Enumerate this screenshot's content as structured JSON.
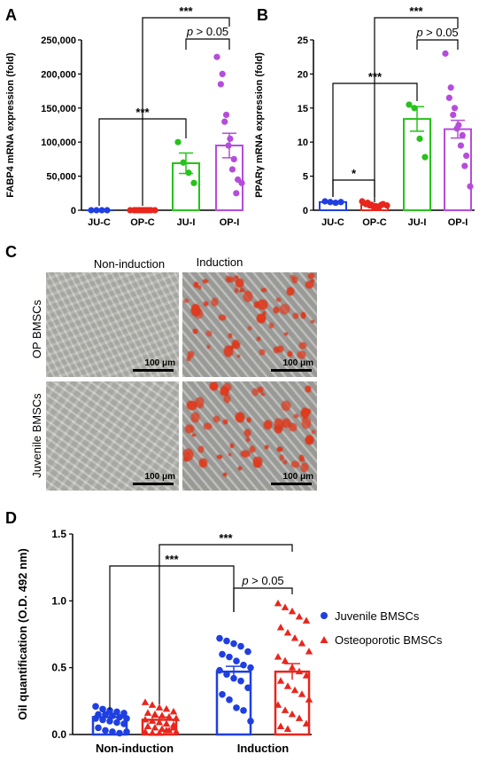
{
  "panel_labels": {
    "a": "A",
    "b": "B",
    "c": "C",
    "d": "D"
  },
  "chart_data": [
    {
      "type": "bar",
      "panel": "A",
      "categories": [
        "JU-C",
        "OP-C",
        "JU-I",
        "OP-I"
      ],
      "ylabel": "FABP4 mRNA expression (fold)",
      "ylim": [
        0,
        250000
      ],
      "yticks": [
        "0",
        "50,000",
        "100,000",
        "150,000",
        "200,000",
        "250,000"
      ],
      "ytick_values": [
        0,
        50000,
        100000,
        150000,
        200000,
        250000
      ],
      "series": [
        {
          "category": "JU-C",
          "color": "#1f3fe0",
          "mean": 1,
          "error": 0,
          "points": [
            1,
            1,
            1,
            1
          ]
        },
        {
          "category": "OP-C",
          "color": "#e8261d",
          "mean": 1,
          "error": 0,
          "points": [
            1,
            1,
            1,
            1,
            1,
            1,
            1,
            1,
            1,
            1,
            1,
            1
          ]
        },
        {
          "category": "JU-I",
          "color": "#27c21b",
          "mean": 69000,
          "error": 15000,
          "points": [
            100000,
            70000,
            55000,
            40000
          ]
        },
        {
          "category": "OP-I",
          "color": "#b54cdc",
          "mean": 95000,
          "error": 18000,
          "points": [
            225000,
            200000,
            185000,
            140000,
            130000,
            105000,
            95000,
            75000,
            60000,
            45000,
            25000,
            40000
          ]
        }
      ],
      "annotations": [
        {
          "label": "***",
          "from": "JU-C",
          "to": "JU-I"
        },
        {
          "label": "***",
          "from": "OP-C",
          "to": "OP-I"
        },
        {
          "label": "p > 0.05",
          "from": "JU-I",
          "to": "OP-I"
        }
      ]
    },
    {
      "type": "bar",
      "panel": "B",
      "categories": [
        "JU-C",
        "OP-C",
        "JU-I",
        "OP-I"
      ],
      "ylabel": "PPARγ mRNA expression (fold)",
      "ylim": [
        0,
        25
      ],
      "yticks": [
        "0",
        "5",
        "10",
        "15",
        "20",
        "25"
      ],
      "ytick_values": [
        0,
        5,
        10,
        15,
        20,
        25
      ],
      "series": [
        {
          "category": "JU-C",
          "color": "#1f3fe0",
          "mean": 1.2,
          "error": 0.1,
          "points": [
            1.3,
            1.2,
            1.1,
            1.2
          ]
        },
        {
          "category": "OP-C",
          "color": "#e8261d",
          "mean": 0.8,
          "error": 0.1,
          "points": [
            1.3,
            1.1,
            0.9,
            0.8,
            0.7,
            0.6,
            0.5,
            0.5,
            0.4,
            0.9,
            0.8,
            0.7
          ]
        },
        {
          "category": "JU-I",
          "color": "#27c21b",
          "mean": 13.4,
          "error": 1.8,
          "points": [
            15.5,
            15.0,
            10.5,
            7.8
          ]
        },
        {
          "category": "OP-I",
          "color": "#b54cdc",
          "mean": 11.9,
          "error": 1.3,
          "points": [
            23.0,
            18.0,
            16.5,
            15.0,
            14.0,
            12.5,
            12.0,
            11.0,
            9.5,
            8.0,
            6.5,
            3.5
          ]
        }
      ],
      "annotations": [
        {
          "label": "*",
          "from": "JU-C",
          "to": "OP-C"
        },
        {
          "label": "***",
          "from": "JU-C",
          "to": "JU-I"
        },
        {
          "label": "***",
          "from": "OP-C",
          "to": "OP-I"
        },
        {
          "label": "p > 0.05",
          "from": "JU-I",
          "to": "OP-I"
        }
      ]
    },
    {
      "type": "bar",
      "panel": "D",
      "categories": [
        "Non-induction",
        "Induction"
      ],
      "ylabel": "Oil quantification (O.D. 492 nm)",
      "ylim": [
        0,
        1.5
      ],
      "yticks": [
        "0.0",
        "0.5",
        "1.0",
        "1.5"
      ],
      "ytick_values": [
        0,
        0.5,
        1.0,
        1.5
      ],
      "legend_position": "right",
      "series": [
        {
          "name": "Juvenile BMSCs",
          "marker": "circle",
          "color": "#1f3fe0",
          "means": [
            0.13,
            0.47
          ],
          "errors": [
            0.02,
            0.04
          ],
          "points": [
            [
              0.21,
              0.19,
              0.18,
              0.17,
              0.16,
              0.15,
              0.15,
              0.14,
              0.13,
              0.12,
              0.12,
              0.11,
              0.1,
              0.09,
              0.08,
              0.05,
              0.03,
              0.02,
              0.01,
              0.02
            ],
            [
              0.72,
              0.7,
              0.68,
              0.66,
              0.62,
              0.6,
              0.58,
              0.55,
              0.52,
              0.5,
              0.48,
              0.45,
              0.42,
              0.4,
              0.35,
              0.3,
              0.26,
              0.2,
              0.18,
              0.1
            ]
          ]
        },
        {
          "name": "Osteoporotic BMSCs",
          "marker": "triangle",
          "color": "#e8261d",
          "means": [
            0.11,
            0.47
          ],
          "errors": [
            0.02,
            0.06
          ],
          "points": [
            [
              0.24,
              0.22,
              0.2,
              0.19,
              0.17,
              0.16,
              0.15,
              0.14,
              0.13,
              0.12,
              0.11,
              0.1,
              0.09,
              0.08,
              0.07,
              0.06,
              0.05,
              0.04,
              0.03,
              0.02,
              0.02,
              0.01,
              0.01,
              0.03,
              0.05
            ],
            [
              0.98,
              0.95,
              0.92,
              0.88,
              0.85,
              0.8,
              0.76,
              0.72,
              0.68,
              0.62,
              0.58,
              0.55,
              0.5,
              0.47,
              0.44,
              0.4,
              0.36,
              0.33,
              0.3,
              0.26,
              0.22,
              0.18,
              0.15,
              0.12,
              0.08,
              0.06,
              0.04
            ]
          ]
        }
      ],
      "annotations": [
        {
          "label": "***",
          "from": "Non-induction",
          "to": "Induction",
          "series_pair": "Juvenile BMSCs"
        },
        {
          "label": "***",
          "from": "Non-induction",
          "to": "Induction",
          "series_pair": "Osteoporotic BMSCs"
        },
        {
          "label": "p > 0.05",
          "within": "Induction"
        }
      ]
    }
  ],
  "panel_c": {
    "col_labels": [
      "Non-induction",
      "Induction"
    ],
    "row_labels": [
      "OP BMSCs",
      "Juvenile BMSCs"
    ],
    "scale_bar": "100 μm",
    "stain_color": "#e2391b"
  }
}
